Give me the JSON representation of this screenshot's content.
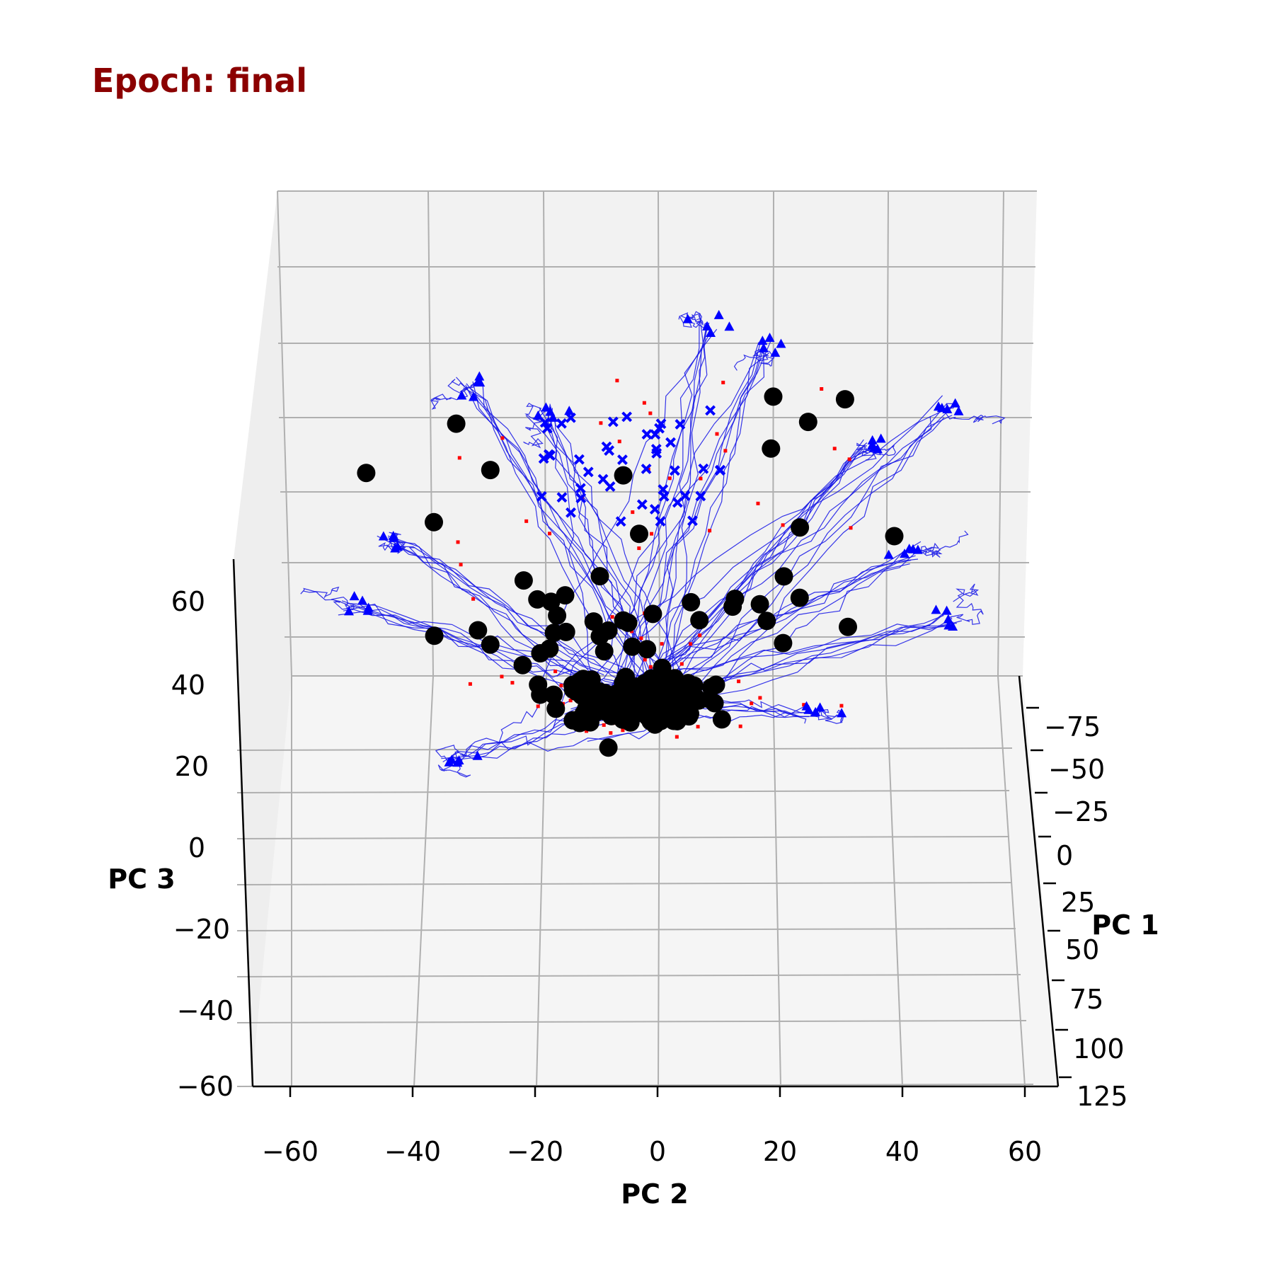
{
  "chart_data": {
    "type": "scatter",
    "projection": "3d",
    "title": "Epoch: final",
    "axes": {
      "x": {
        "label": "PC 1",
        "range": [
          -90,
          125
        ],
        "ticks": [
          "−75",
          "−50",
          "−25",
          "0",
          "25",
          "50",
          "75",
          "100",
          "125"
        ]
      },
      "y": {
        "label": "PC 2",
        "range": [
          -65,
          65
        ],
        "ticks": [
          "−60",
          "−40",
          "−20",
          "0",
          "20",
          "40",
          "60"
        ]
      },
      "z": {
        "label": "PC 3",
        "range": [
          -62,
          70
        ],
        "ticks": [
          "60",
          "40",
          "20",
          "0",
          "−20",
          "−40",
          "−60"
        ]
      }
    },
    "grid": true,
    "pane_color": "#f2f2f2",
    "series": [
      {
        "marker": "line",
        "color": "#0000ff",
        "values": []
      },
      {
        "marker": "triangle",
        "color": "#0000ff",
        "values": []
      },
      {
        "marker": "x",
        "color": "#0000ff",
        "values": []
      },
      {
        "marker": "square",
        "color": "#ff0000",
        "values": []
      },
      {
        "marker": "circle",
        "color": "#000000",
        "values": []
      }
    ]
  }
}
